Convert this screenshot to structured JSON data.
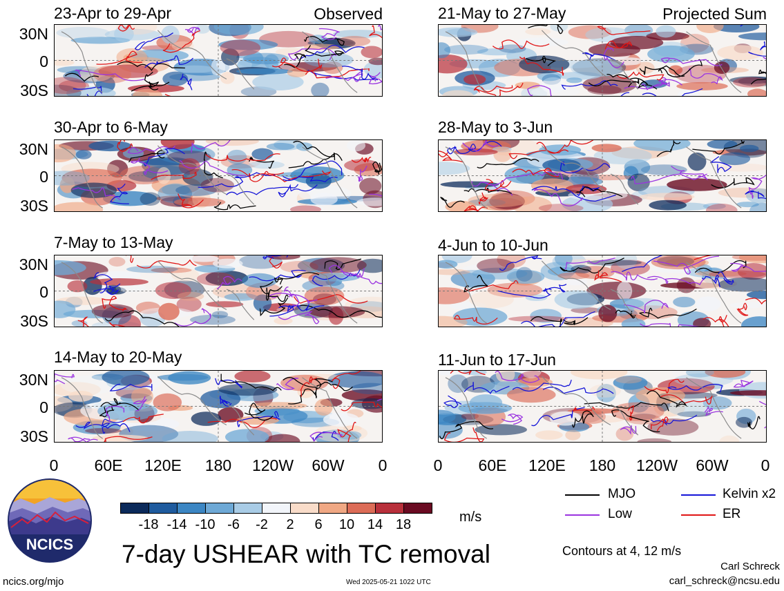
{
  "panels_left": [
    {
      "title": "23-Apr to 29-Apr",
      "tag": "Observed"
    },
    {
      "title": "30-Apr to 6-May",
      "tag": ""
    },
    {
      "title": "7-May to 13-May",
      "tag": ""
    },
    {
      "title": "14-May to 20-May",
      "tag": ""
    }
  ],
  "panels_right": [
    {
      "title": "21-May to 27-May",
      "tag": "Projected Sum"
    },
    {
      "title": "28-May to 3-Jun",
      "tag": ""
    },
    {
      "title": "4-Jun to 10-Jun",
      "tag": ""
    },
    {
      "title": "11-Jun to 17-Jun",
      "tag": ""
    }
  ],
  "y_ticks": [
    "30N",
    "0",
    "30S"
  ],
  "x_ticks": [
    "0",
    "60E",
    "120E",
    "180",
    "120W",
    "60W",
    "0"
  ],
  "colorbar": {
    "labels": [
      "-18",
      "-14",
      "-10",
      "-6",
      "-2",
      "2",
      "6",
      "10",
      "14",
      "18"
    ],
    "colors": [
      "#0b2a5a",
      "#1f5b9e",
      "#3c86c3",
      "#6ea9d6",
      "#a9cce6",
      "#f2f5fa",
      "#f9dcc9",
      "#f0a884",
      "#dc6c57",
      "#b8303b",
      "#6a0b22"
    ],
    "unit": "m/s"
  },
  "legend": {
    "mjo": {
      "label": "MJO",
      "color": "#000000"
    },
    "kelvin": {
      "label": "Kelvin x2",
      "color": "#1414d8"
    },
    "low": {
      "label": "Low",
      "color": "#9a33e0"
    },
    "er": {
      "label": "ER",
      "color": "#e01414"
    }
  },
  "contours_note": "Contours at 4, 12 m/s",
  "main_title": "7-day USHEAR with TC removal",
  "logo_text": "NCICS",
  "footer": {
    "url": "ncics.org/mjo",
    "timestamp": "Wed 2025-05-21 1022 UTC",
    "author": "Carl Schreck",
    "email": "carl_schreck@ncsu.edu"
  }
}
